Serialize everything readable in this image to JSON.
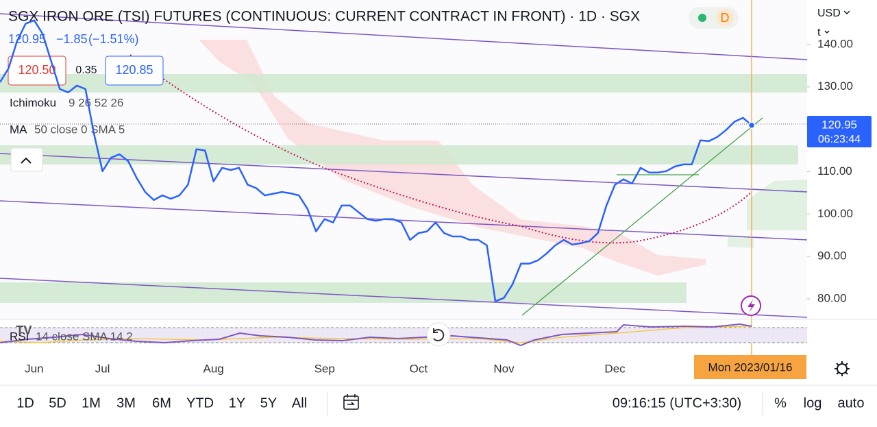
{
  "header": {
    "title": "SGX IRON ORE (TSI) FUTURES (CONTINUOUS: CURRENT CONTRACT IN FRONT) · 1D · SGX",
    "badge": "D",
    "currency": "USD",
    "unit": "t",
    "last": "120.95",
    "change": "−1.85",
    "change_pct": "(−1.51%)",
    "bid": "120.50",
    "spread": "0.35",
    "ask": "120.85"
  },
  "indicators": [
    {
      "name": "Ichimoku",
      "params": "9 26 52 26"
    },
    {
      "name": "MA",
      "params": "50 close 0 SMA 5"
    },
    {
      "name": "RSI",
      "params": "14 close SMA 14 2"
    }
  ],
  "price_tag": {
    "price": "120.95",
    "countdown": "06:23:44"
  },
  "chart_data": {
    "type": "line",
    "categories": [
      null,
      null,
      null,
      null,
      "Jun",
      null,
      null,
      null,
      null,
      null,
      null,
      null,
      "Jul",
      null,
      null,
      null,
      null,
      null,
      null,
      null,
      null,
      null,
      null,
      null,
      null,
      "Aug",
      null,
      null,
      null,
      null,
      null,
      null,
      null,
      null,
      null,
      null,
      null,
      null,
      "Sep",
      null,
      null,
      null,
      null,
      null,
      null,
      null,
      null,
      null,
      null,
      "Oct",
      null,
      null,
      null,
      null,
      null,
      null,
      null,
      null,
      null,
      "Nov",
      null,
      null,
      null,
      null,
      null,
      null,
      null,
      null,
      null,
      null,
      null,
      null,
      "Dec",
      null,
      null,
      null,
      null,
      null,
      null,
      null,
      null,
      null,
      null,
      null,
      null,
      null,
      null,
      null,
      "Mon 2023/01/16"
    ],
    "series": [
      {
        "name": "SGX IRON ORE (TSI) FUTURES",
        "color": "#2962ff",
        "values": [
          131.1,
          134.4,
          140.8,
          144.9,
          145.7,
          142.5,
          136.0,
          129.5,
          128.7,
          130.3,
          129.5,
          119.0,
          110.1,
          113.3,
          114.1,
          112.5,
          108.5,
          105.2,
          103.3,
          104.4,
          103.6,
          104.4,
          106.9,
          115.3,
          115.0,
          107.7,
          110.9,
          110.4,
          110.9,
          106.9,
          106.1,
          104.4,
          104.8,
          105.2,
          104.9,
          104.4,
          101.2,
          95.9,
          98.8,
          98.0,
          102.0,
          102.0,
          100.4,
          98.8,
          98.4,
          98.8,
          98.8,
          98.0,
          93.9,
          95.5,
          95.9,
          98.0,
          95.5,
          94.7,
          94.7,
          93.9,
          93.9,
          92.6,
          79.4,
          80.2,
          83.4,
          88.3,
          88.3,
          89.1,
          90.7,
          92.6,
          93.9,
          92.8,
          93.1,
          93.6,
          95.5,
          102.0,
          106.9,
          108.2,
          107.2,
          110.9,
          109.8,
          109.8,
          110.1,
          111.2,
          111.7,
          111.7,
          117.4,
          117.2,
          118.2,
          119.8,
          121.8,
          122.7,
          120.95
        ]
      }
    ],
    "ylim": [
      75.3,
      150.5
    ],
    "yticks": [
      {
        "value": 80,
        "label": "80.00"
      },
      {
        "value": 90,
        "label": "90.00"
      },
      {
        "value": 100,
        "label": "100.00"
      },
      {
        "value": 110,
        "label": "110.00"
      },
      {
        "value": 130,
        "label": "130.00"
      },
      {
        "value": 140,
        "label": "140.00"
      }
    ]
  },
  "toolbar": {
    "ranges": [
      "1D",
      "5D",
      "1M",
      "3M",
      "6M",
      "YTD",
      "1Y",
      "5Y",
      "All"
    ],
    "clock": "09:16:15 (UTC+3:30)",
    "percent": "%",
    "log": "log",
    "auto": "auto"
  }
}
